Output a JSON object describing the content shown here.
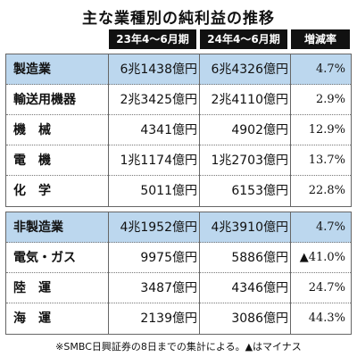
{
  "title": "主な業種別の純利益の推移",
  "footnote": "※SMBC日興証券の8日までの集計による。▲はマイナス",
  "chart_data": {
    "type": "table",
    "columns": [
      "23年4〜6月期",
      "24年4〜6月期",
      "増減率"
    ],
    "groups": [
      {
        "rows": [
          {
            "name": "製造業",
            "v1": "6兆1438億円",
            "v2": "6兆4326億円",
            "rate": "4.7%",
            "highlight": true
          },
          {
            "name": "輸送用機器",
            "v1": "2兆3425億円",
            "v2": "2兆4110億円",
            "rate": "2.9%",
            "highlight": false
          },
          {
            "name": "機　械",
            "v1": "4341億円",
            "v2": "4902億円",
            "rate": "12.9%",
            "highlight": false
          },
          {
            "name": "電　機",
            "v1": "1兆1174億円",
            "v2": "1兆2703億円",
            "rate": "13.7%",
            "highlight": false
          },
          {
            "name": "化　学",
            "v1": "5011億円",
            "v2": "6153億円",
            "rate": "22.8%",
            "highlight": false
          }
        ]
      },
      {
        "rows": [
          {
            "name": "非製造業",
            "v1": "4兆1952億円",
            "v2": "4兆3910億円",
            "rate": "4.7%",
            "highlight": true
          },
          {
            "name": "電気・ガス",
            "v1": "9975億円",
            "v2": "5886億円",
            "rate": "▲41.0%",
            "highlight": false
          },
          {
            "name": "陸　運",
            "v1": "3487億円",
            "v2": "4346億円",
            "rate": "24.7%",
            "highlight": false
          },
          {
            "name": "海　運",
            "v1": "2139億円",
            "v2": "3086億円",
            "rate": "44.3%",
            "highlight": false
          }
        ]
      }
    ]
  }
}
